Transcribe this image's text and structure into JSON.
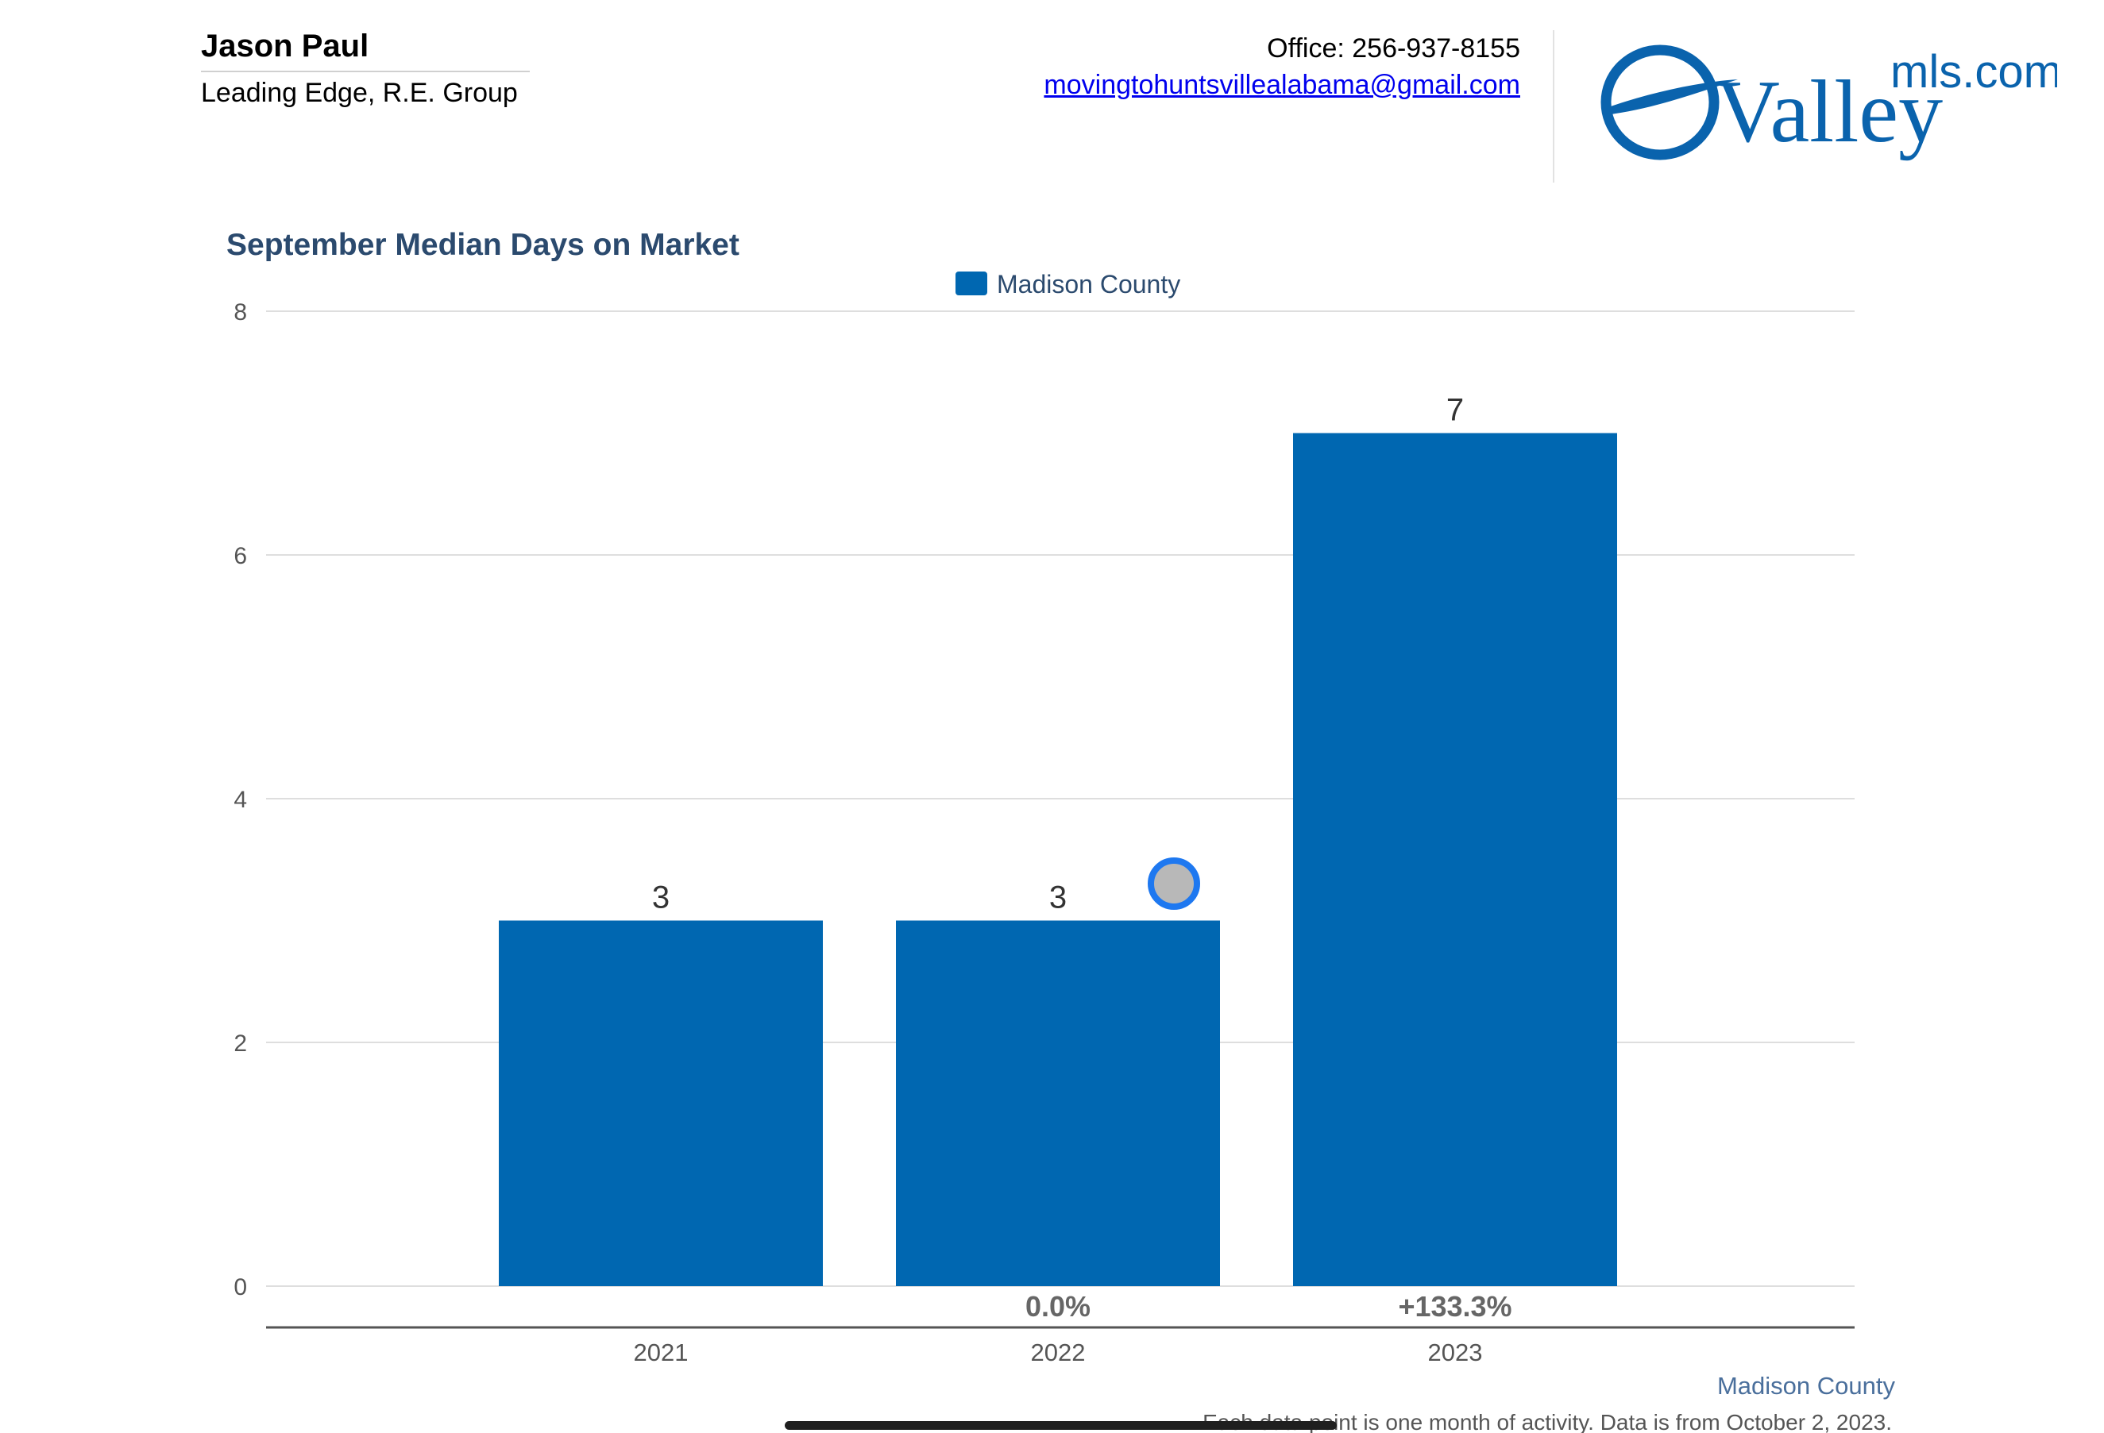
{
  "header": {
    "agent_name": "Jason Paul",
    "company": "Leading Edge, R.E. Group",
    "office": "Office: 256-937-8155",
    "email": "movingtohuntsvillealabama@gmail.com",
    "logo": {
      "primary": "Valley",
      "secondary": "mls.com",
      "color": "#0a63ad"
    }
  },
  "chart_data": {
    "type": "bar",
    "title": "September Median Days on Market",
    "categories": [
      "2021",
      "2022",
      "2023"
    ],
    "series": [
      {
        "name": "Madison County",
        "color": "#0067b1",
        "values": [
          3,
          3,
          7
        ]
      }
    ],
    "data_labels": [
      "3",
      "3",
      "7"
    ],
    "change_labels": [
      "",
      "0.0%",
      "+133.3%"
    ],
    "ylim": [
      0,
      8
    ],
    "yticks": [
      0,
      2,
      4,
      6,
      8
    ],
    "grid": true,
    "legend_position": "top-center",
    "xlabel": "",
    "ylabel": ""
  },
  "footer": {
    "region": "Madison County",
    "note": "Each data point is one month of activity. Data is from October 2, 2023."
  }
}
